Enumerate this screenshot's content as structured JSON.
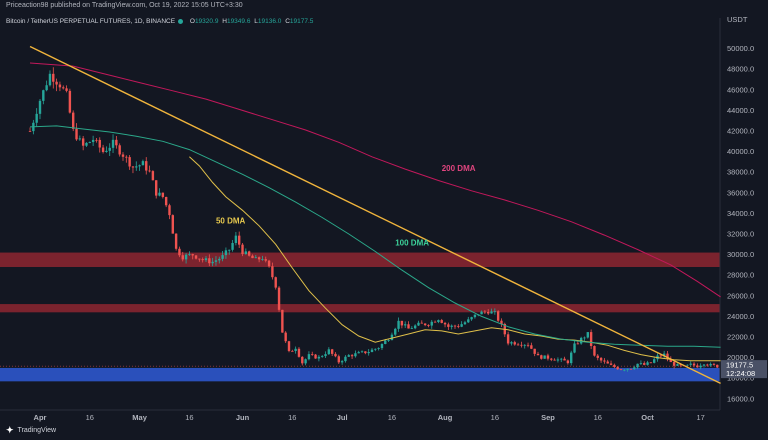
{
  "header": {
    "publisher": "Priceaction98 published on TradingView.com, Oct 19, 2022 15:05 UTC+3:30"
  },
  "legend": {
    "symbol": "Bitcoin / TetherUS PERPETUAL FUTURES, 1D, BINANCE",
    "open_label": "O",
    "open": "19320.9",
    "high_label": "H",
    "high": "19349.6",
    "low_label": "L",
    "low": "19136.0",
    "close_label": "C",
    "close": "19177.5"
  },
  "footer": {
    "brand": "TradingView",
    "logo": "tradingview-logo-icon"
  },
  "colors": {
    "background": "#131722",
    "up": "#26a69a",
    "down": "#ef5350",
    "ma50": "#e0c04a",
    "ma100": "#2ba88a",
    "ma200": "#c2185b",
    "trendline": "#f0b43c",
    "resistance_zone": "#a82a33",
    "support_zone": "#2f5bd6"
  },
  "chart_data": {
    "type": "candlestick",
    "currency": "USDT",
    "ylim": [
      15500,
      52000
    ],
    "y_ticks": [
      16000,
      18000,
      20000,
      22000,
      24000,
      26000,
      28000,
      30000,
      32000,
      34000,
      36000,
      38000,
      40000,
      42000,
      44000,
      46000,
      48000,
      50000
    ],
    "x_ticks": [
      {
        "label": "Apr",
        "day": 0
      },
      {
        "label": "16",
        "day": 15
      },
      {
        "label": "May",
        "day": 30
      },
      {
        "label": "16",
        "day": 45
      },
      {
        "label": "Jun",
        "day": 61
      },
      {
        "label": "16",
        "day": 76
      },
      {
        "label": "Jul",
        "day": 91
      },
      {
        "label": "16",
        "day": 106
      },
      {
        "label": "Aug",
        "day": 122
      },
      {
        "label": "16",
        "day": 137
      },
      {
        "label": "Sep",
        "day": 153
      },
      {
        "label": "16",
        "day": 168
      },
      {
        "label": "Oct",
        "day": 183
      },
      {
        "label": "17",
        "day": 199
      }
    ],
    "price_key_points": [
      [
        -3,
        42000
      ],
      [
        0,
        45000
      ],
      [
        3,
        47500
      ],
      [
        6,
        46500
      ],
      [
        8,
        45500
      ],
      [
        10,
        42000
      ],
      [
        13,
        40500
      ],
      [
        16,
        41200
      ],
      [
        19,
        40000
      ],
      [
        22,
        40800
      ],
      [
        25,
        39700
      ],
      [
        28,
        38500
      ],
      [
        31,
        38800
      ],
      [
        33,
        38000
      ],
      [
        35,
        36000
      ],
      [
        37,
        35600
      ],
      [
        39,
        34000
      ],
      [
        41,
        30500
      ],
      [
        43,
        29800
      ],
      [
        46,
        30000
      ],
      [
        49,
        29500
      ],
      [
        52,
        29300
      ],
      [
        55,
        29800
      ],
      [
        57,
        30500
      ],
      [
        59,
        31700
      ],
      [
        61,
        30300
      ],
      [
        63,
        29800
      ],
      [
        65,
        29500
      ],
      [
        67,
        29700
      ],
      [
        69,
        28700
      ],
      [
        71,
        27000
      ],
      [
        73,
        22500
      ],
      [
        75,
        20500
      ],
      [
        77,
        21000
      ],
      [
        79,
        19500
      ],
      [
        81,
        20200
      ],
      [
        84,
        20000
      ],
      [
        87,
        20700
      ],
      [
        90,
        19600
      ],
      [
        93,
        20200
      ],
      [
        96,
        20400
      ],
      [
        99,
        20600
      ],
      [
        102,
        21000
      ],
      [
        105,
        21900
      ],
      [
        108,
        23500
      ],
      [
        111,
        22800
      ],
      [
        114,
        23200
      ],
      [
        117,
        23300
      ],
      [
        120,
        23800
      ],
      [
        123,
        23000
      ],
      [
        126,
        23100
      ],
      [
        129,
        23600
      ],
      [
        132,
        24300
      ],
      [
        135,
        24500
      ],
      [
        137,
        24300
      ],
      [
        139,
        23100
      ],
      [
        141,
        21500
      ],
      [
        144,
        21400
      ],
      [
        147,
        21300
      ],
      [
        150,
        20100
      ],
      [
        153,
        20000
      ],
      [
        156,
        19800
      ],
      [
        159,
        19600
      ],
      [
        161,
        21200
      ],
      [
        163,
        21800
      ],
      [
        165,
        22300
      ],
      [
        167,
        20100
      ],
      [
        169,
        19700
      ],
      [
        172,
        19200
      ],
      [
        175,
        18900
      ],
      [
        178,
        19000
      ],
      [
        180,
        19400
      ],
      [
        182,
        19300
      ],
      [
        184,
        19500
      ],
      [
        186,
        20100
      ],
      [
        188,
        20300
      ],
      [
        190,
        19500
      ],
      [
        192,
        19200
      ],
      [
        194,
        19100
      ],
      [
        196,
        19300
      ],
      [
        198,
        19200
      ],
      [
        200,
        19500
      ],
      [
        202,
        19250
      ],
      [
        204,
        19177.5
      ]
    ],
    "moving_averages": [
      {
        "name": "50 DMA",
        "color": "#e0c04a",
        "points": [
          [
            45,
            39500
          ],
          [
            48,
            38600
          ],
          [
            52,
            37000
          ],
          [
            56,
            35600
          ],
          [
            61,
            34300
          ],
          [
            66,
            32800
          ],
          [
            71,
            31000
          ],
          [
            76,
            28700
          ],
          [
            81,
            26500
          ],
          [
            86,
            24800
          ],
          [
            91,
            23200
          ],
          [
            96,
            22100
          ],
          [
            101,
            21500
          ],
          [
            106,
            21900
          ],
          [
            111,
            22300
          ],
          [
            116,
            22700
          ],
          [
            121,
            22600
          ],
          [
            126,
            22300
          ],
          [
            131,
            22600
          ],
          [
            136,
            22900
          ],
          [
            141,
            22700
          ],
          [
            146,
            22300
          ],
          [
            151,
            22100
          ],
          [
            156,
            21800
          ],
          [
            161,
            21700
          ],
          [
            166,
            21500
          ],
          [
            171,
            21200
          ],
          [
            176,
            20700
          ],
          [
            181,
            20300
          ],
          [
            186,
            20000
          ],
          [
            191,
            19800
          ],
          [
            196,
            19700
          ],
          [
            201,
            19700
          ],
          [
            205,
            19700
          ]
        ]
      },
      {
        "name": "100 DMA",
        "color": "#2ba88a",
        "points": [
          [
            -3,
            42400
          ],
          [
            5,
            42500
          ],
          [
            13,
            42200
          ],
          [
            21,
            41900
          ],
          [
            29,
            41500
          ],
          [
            37,
            41000
          ],
          [
            45,
            40200
          ],
          [
            53,
            39000
          ],
          [
            61,
            37800
          ],
          [
            69,
            36500
          ],
          [
            77,
            35100
          ],
          [
            85,
            33600
          ],
          [
            93,
            32000
          ],
          [
            101,
            30300
          ],
          [
            109,
            28500
          ],
          [
            117,
            26800
          ],
          [
            125,
            25300
          ],
          [
            133,
            24000
          ],
          [
            141,
            23000
          ],
          [
            149,
            22300
          ],
          [
            157,
            21800
          ],
          [
            165,
            21500
          ],
          [
            173,
            21300
          ],
          [
            181,
            21200
          ],
          [
            189,
            21100
          ],
          [
            197,
            21100
          ],
          [
            205,
            21000
          ]
        ]
      },
      {
        "name": "200 DMA",
        "color": "#c2185b",
        "points": [
          [
            -3,
            48600
          ],
          [
            10,
            48300
          ],
          [
            20,
            47500
          ],
          [
            30,
            46700
          ],
          [
            40,
            45900
          ],
          [
            50,
            45100
          ],
          [
            60,
            44100
          ],
          [
            70,
            43100
          ],
          [
            80,
            42100
          ],
          [
            90,
            40900
          ],
          [
            100,
            39500
          ],
          [
            110,
            38300
          ],
          [
            120,
            37200
          ],
          [
            130,
            36200
          ],
          [
            140,
            35300
          ],
          [
            150,
            34300
          ],
          [
            160,
            33200
          ],
          [
            170,
            31900
          ],
          [
            180,
            30500
          ],
          [
            190,
            29000
          ],
          [
            198,
            27400
          ],
          [
            205,
            25900
          ]
        ]
      }
    ],
    "trendline": {
      "from": [
        -3,
        50200
      ],
      "to": [
        205,
        17500
      ]
    },
    "zones": [
      {
        "name": "resistance-zone-30000",
        "from": 28800,
        "to": 30200,
        "color": "#a82a33"
      },
      {
        "name": "resistance-zone-25000",
        "from": 24400,
        "to": 25200,
        "color": "#a82a33"
      },
      {
        "name": "support-zone-18000",
        "from": 17700,
        "to": 19000,
        "color": "#2f5bd6"
      }
    ],
    "annotations": [
      {
        "text": "200 DMA",
        "day": 121,
        "price": 38100,
        "color": "#e0457f"
      },
      {
        "text": "50 DMA",
        "day": 53,
        "price": 33000,
        "color": "#e6c84e"
      },
      {
        "text": "100 DMA",
        "day": 107,
        "price": 30900,
        "color": "#3cd29a"
      }
    ],
    "price_labels": {
      "current": "19177.5",
      "countdown": "12:24:08",
      "pair": "USDT"
    }
  }
}
